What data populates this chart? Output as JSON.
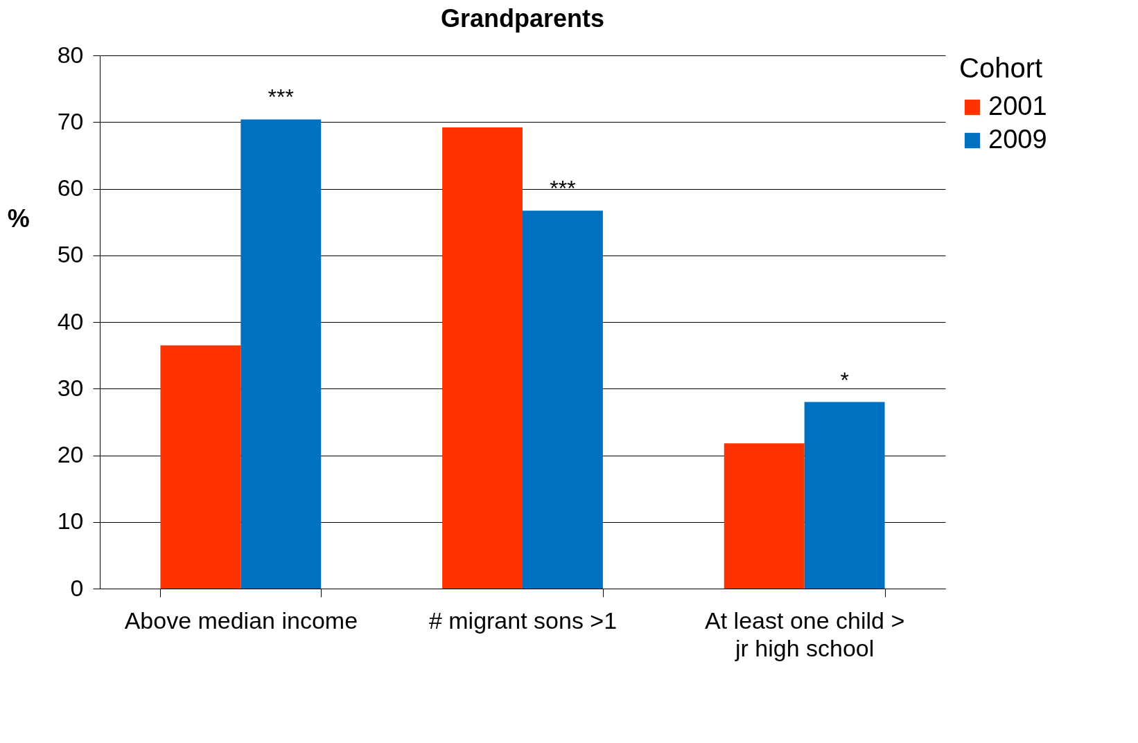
{
  "chart_data": {
    "type": "bar",
    "title": "Grandparents",
    "ylabel": "%",
    "legend_title": "Cohort",
    "legend": "right",
    "grid": "y",
    "categories": [
      "Above median income",
      "# migrant sons >1",
      "At least one child > jr high school"
    ],
    "series": [
      {
        "name": "2001",
        "color": "#ff3300",
        "values": [
          36.5,
          69.2,
          21.8
        ]
      },
      {
        "name": "2009",
        "color": "#0070c0",
        "values": [
          70.4,
          56.7,
          28.0
        ]
      }
    ],
    "ylim": [
      0,
      80
    ],
    "yticks": [
      0,
      10,
      20,
      30,
      40,
      50,
      60,
      70,
      80
    ],
    "annotations": [
      {
        "text": "***",
        "x": "Above median income",
        "y": 70.4
      },
      {
        "text": "***",
        "x": "# migrant sons >1",
        "y": 56.7
      },
      {
        "text": "*",
        "x": "At least one child > jr high school",
        "y": 28.0
      }
    ]
  }
}
